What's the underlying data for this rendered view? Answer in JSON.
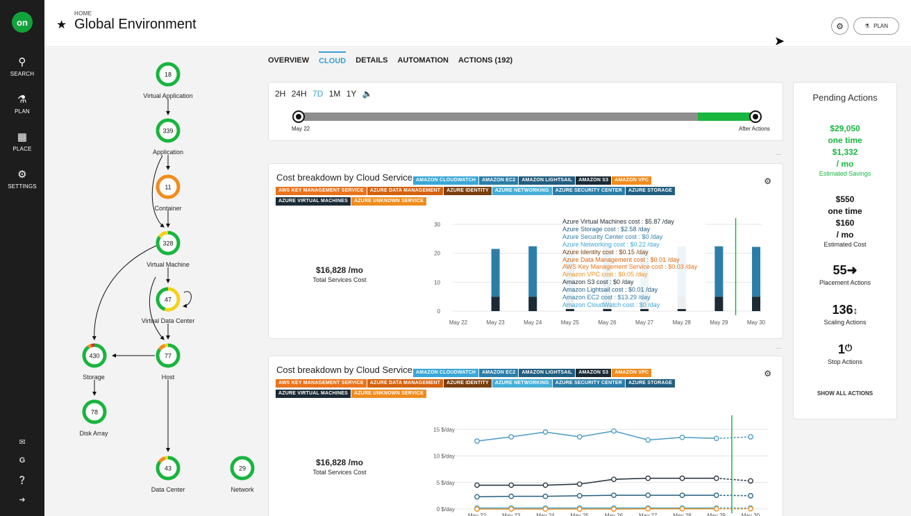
{
  "nav": {
    "logo": "on",
    "items": [
      {
        "label": "SEARCH",
        "icon": "search-icon"
      },
      {
        "label": "PLAN",
        "icon": "flask-icon"
      },
      {
        "label": "PLACE",
        "icon": "puzzle-icon"
      },
      {
        "label": "SETTINGS",
        "icon": "gear-icon"
      }
    ],
    "bottom_icons": [
      "mail-icon",
      "google-icon",
      "help-icon",
      "logout-icon"
    ]
  },
  "header": {
    "breadcrumb": "HOME",
    "title": "Global Environment",
    "plan_label": "PLAN"
  },
  "topology": [
    {
      "id": "va",
      "label": "Virtual Application",
      "value": "18"
    },
    {
      "id": "app",
      "label": "Application",
      "value": "339"
    },
    {
      "id": "cont",
      "label": "Container",
      "value": "11"
    },
    {
      "id": "vm",
      "label": "Virtual Machine",
      "value": "328"
    },
    {
      "id": "vdc",
      "label": "Virtual Data Center",
      "value": "47"
    },
    {
      "id": "sto",
      "label": "Storage",
      "value": "430"
    },
    {
      "id": "host",
      "label": "Host",
      "value": "77"
    },
    {
      "id": "disk",
      "label": "Disk Array",
      "value": "78"
    },
    {
      "id": "dc",
      "label": "Data Center",
      "value": "43"
    },
    {
      "id": "net",
      "label": "Network",
      "value": "29"
    }
  ],
  "tabs": [
    "OVERVIEW",
    "CLOUD",
    "DETAILS",
    "AUTOMATION",
    "ACTIONS (192)"
  ],
  "active_tab": "CLOUD",
  "timeline": {
    "ranges": [
      "2H",
      "24H",
      "7D",
      "1M",
      "1Y"
    ],
    "selected": "7D",
    "start_label": "May 22",
    "end_label": "After Actions"
  },
  "more_glyph": "...",
  "tags": [
    {
      "label": "AMAZON CLOUDWATCH",
      "color": "#3aa7d6"
    },
    {
      "label": "AMAZON EC2",
      "color": "#2c7ea8"
    },
    {
      "label": "AMAZON LIGHTSAIL",
      "color": "#225e80"
    },
    {
      "label": "AMAZON S3",
      "color": "#1b2a35"
    },
    {
      "label": "AMAZON VPC",
      "color": "#f08c1e"
    },
    {
      "label": "AWS KEY MANAGEMENT SERVICE",
      "color": "#e9731c"
    },
    {
      "label": "AZURE DATA MANAGEMENT",
      "color": "#d4620f"
    },
    {
      "label": "AZURE IDENTITY",
      "color": "#7a3f0e"
    },
    {
      "label": "AZURE NETWORKING",
      "color": "#45afd8"
    },
    {
      "label": "AZURE SECURITY CENTER",
      "color": "#2c7ea8"
    },
    {
      "label": "AZURE STORAGE",
      "color": "#225e80"
    },
    {
      "label": "AZURE VIRTUAL MACHINES",
      "color": "#1b2a35"
    },
    {
      "label": "AZURE UNKNOWN SERVICE",
      "color": "#f08c1e"
    }
  ],
  "cost_card_1": {
    "title": "Cost breakdown by Cloud Service",
    "total": "$16,828 /mo",
    "total_label": "Total Services Cost"
  },
  "cost_card_2": {
    "title": "Cost breakdown by Cloud Service",
    "total": "$16,828 /mo",
    "total_label": "Total Services Cost"
  },
  "tooltip": [
    {
      "text": "Azure Virtual Machines cost : $5.87 /day",
      "color": "#1b2a35"
    },
    {
      "text": "Azure Storage cost : $2.58 /day",
      "color": "#225e80"
    },
    {
      "text": "Azure Security Center cost : $0 /day",
      "color": "#2c7ea8"
    },
    {
      "text": "Azure Networking cost : $0.22 /day",
      "color": "#3aa7d6"
    },
    {
      "text": "Azure Identity cost : $0.15 /day",
      "color": "#7a3f0e"
    },
    {
      "text": "Azure Data Management cost : $0.01 /day",
      "color": "#d4620f"
    },
    {
      "text": "AWS Key Management Service cost : $0.03 /day",
      "color": "#e9731c"
    },
    {
      "text": "Amazon VPC cost : $0.05 /day",
      "color": "#f08c1e"
    },
    {
      "text": "Amazon S3 cost : $0 /day",
      "color": "#1b2a35"
    },
    {
      "text": "Amazon Lightsail cost : $0.01 /day",
      "color": "#225e80"
    },
    {
      "text": "Amazon EC2 cost : $13.29 /day",
      "color": "#2c7ea8"
    },
    {
      "text": "Amazon CloudWatch cost : $0 /day",
      "color": "#3aa7d6"
    }
  ],
  "chart_data": [
    {
      "type": "bar",
      "categories": [
        "May 22",
        "May 23",
        "May 24",
        "May 25",
        "May 26",
        "May 27",
        "May 28",
        "May 29",
        "May 30"
      ],
      "ylim": [
        0,
        30
      ],
      "yticks": [
        0,
        10,
        20,
        30
      ],
      "series": [
        {
          "values": [
            0,
            5,
            5,
            5,
            5,
            5,
            5,
            5,
            5
          ],
          "color": "#1b2a35"
        },
        {
          "values": [
            0,
            16.5,
            17.4,
            16.5,
            17.4,
            16.5,
            17.4,
            17.4,
            17.2
          ],
          "color": "#2c7ea8"
        }
      ],
      "marker_after": "May 29"
    },
    {
      "type": "line",
      "categories": [
        "May 22",
        "May 23",
        "May 24",
        "May 25",
        "May 26",
        "May 27",
        "May 28",
        "May 29",
        "May 30"
      ],
      "ylim": [
        0,
        17
      ],
      "yticks": [
        0,
        5,
        10,
        15
      ],
      "ytick_labels": [
        "0 $/day",
        "5 $/day",
        "10 $/day",
        "15 $/day"
      ],
      "series": [
        {
          "values": [
            12.8,
            13.6,
            14.5,
            13.6,
            14.7,
            13.0,
            13.5,
            13.3,
            13.6
          ],
          "color": "#4a98c5"
        },
        {
          "values": [
            4.5,
            4.5,
            4.5,
            4.7,
            5.6,
            5.8,
            5.8,
            5.8,
            5.3
          ],
          "color": "#1b2a35"
        },
        {
          "values": [
            2.3,
            2.4,
            2.4,
            2.5,
            2.6,
            2.6,
            2.6,
            2.6,
            2.5
          ],
          "color": "#225e80"
        },
        {
          "values": [
            0.2,
            0.2,
            0.2,
            0.2,
            0.2,
            0.2,
            0.2,
            0.2,
            0.2
          ],
          "color": "#3aa7d6"
        },
        {
          "values": [
            0,
            0,
            0,
            0,
            0,
            0.05,
            0.05,
            0.05,
            0.05
          ],
          "color": "#f08c1e"
        }
      ],
      "marker_after": "May 29"
    }
  ],
  "pending": {
    "title": "Pending Actions",
    "savings_one_time": "$29,050",
    "one_time": "one time",
    "savings_monthly": "$1,332",
    "per_mo": "/ mo",
    "savings_label": "Estimated Savings",
    "cost_one_time": "$550",
    "cost_monthly": "$160",
    "cost_label": "Estimated Cost",
    "placement_count": "55",
    "placement_label": "Placement Actions",
    "scaling_count": "136",
    "scaling_label": "Scaling Actions",
    "stop_count": "1",
    "stop_label": "Stop Actions",
    "show_all": "SHOW ALL ACTIONS"
  }
}
